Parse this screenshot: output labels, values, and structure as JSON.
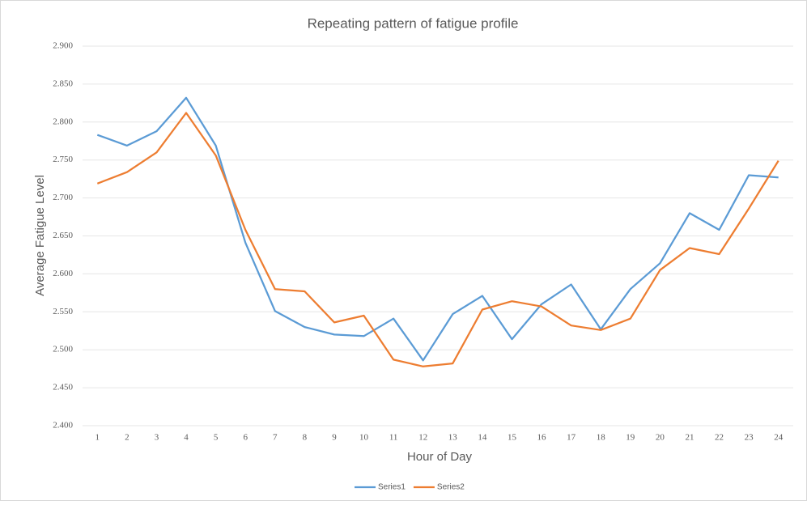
{
  "chart_data": {
    "type": "line",
    "title": "Repeating pattern of fatigue profile",
    "x_label": "Hour of Day",
    "y_label": "Average Fatigue Level",
    "categories": [
      "1",
      "2",
      "3",
      "4",
      "5",
      "6",
      "7",
      "8",
      "9",
      "10",
      "11",
      "12",
      "13",
      "14",
      "15",
      "16",
      "17",
      "18",
      "19",
      "20",
      "21",
      "22",
      "23",
      "24"
    ],
    "series": [
      {
        "name": "Series1",
        "color": "#5b9bd5",
        "values": [
          2.783,
          2.769,
          2.788,
          2.832,
          2.769,
          2.641,
          2.551,
          2.53,
          2.52,
          2.518,
          2.541,
          2.486,
          2.547,
          2.571,
          2.514,
          2.56,
          2.586,
          2.527,
          2.58,
          2.614,
          2.68,
          2.658,
          2.73,
          2.727
        ]
      },
      {
        "name": "Series2",
        "color": "#ed7d31",
        "values": [
          2.719,
          2.734,
          2.76,
          2.812,
          2.756,
          2.658,
          2.58,
          2.577,
          2.536,
          2.545,
          2.487,
          2.478,
          2.482,
          2.553,
          2.564,
          2.557,
          2.532,
          2.526,
          2.541,
          2.605,
          2.634,
          2.626,
          2.686,
          2.749
        ]
      }
    ],
    "ylim": [
      2.4,
      2.9
    ],
    "yticks": [
      {
        "value": 2.4,
        "label": "2.400"
      },
      {
        "value": 2.45,
        "label": "2.450"
      },
      {
        "value": 2.5,
        "label": "2.500"
      },
      {
        "value": 2.55,
        "label": "2.550"
      },
      {
        "value": 2.6,
        "label": "2.600"
      },
      {
        "value": 2.65,
        "label": "2.650"
      },
      {
        "value": 2.7,
        "label": "2.700"
      },
      {
        "value": 2.75,
        "label": "2.750"
      },
      {
        "value": 2.8,
        "label": "2.800"
      },
      {
        "value": 2.85,
        "label": "2.850"
      },
      {
        "value": 2.9,
        "label": "2.900"
      }
    ],
    "grid": true,
    "legend": "bottom"
  }
}
